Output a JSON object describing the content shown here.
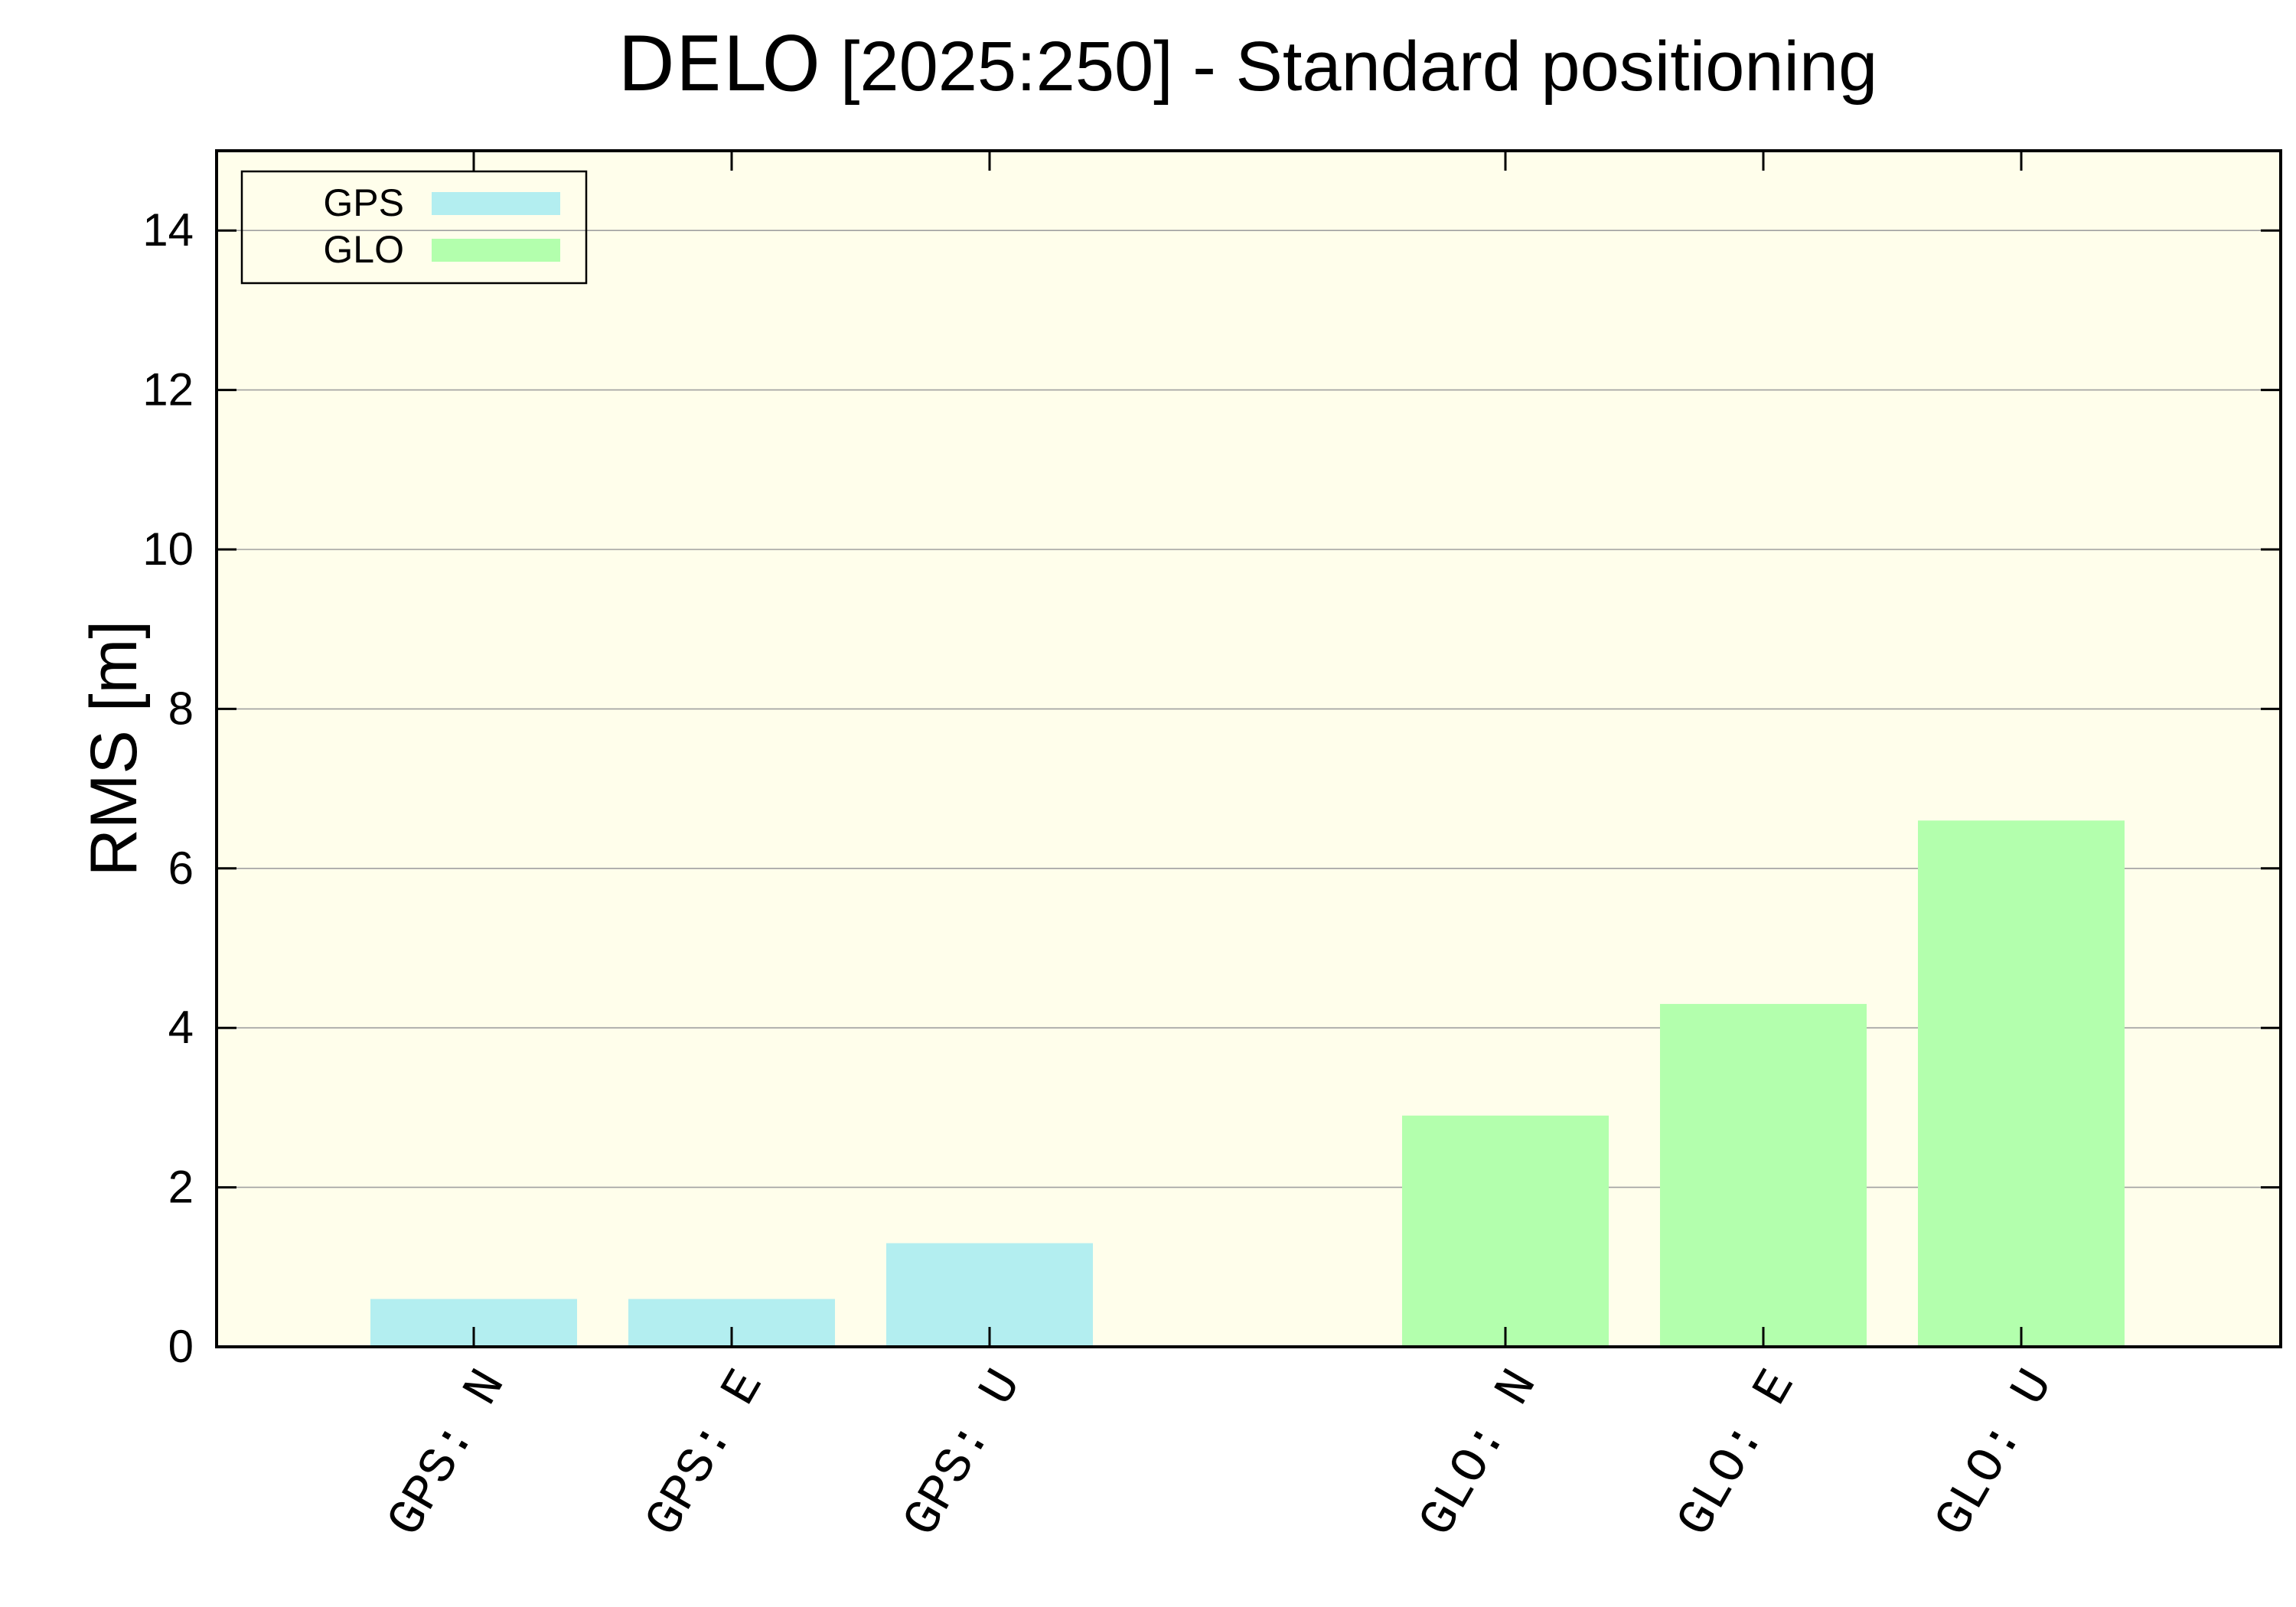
{
  "chart_data": {
    "type": "bar",
    "title_station": "DELO",
    "title_rest": " [2025:250] - Standard positioning",
    "xlabel": "",
    "ylabel": "RMS [m]",
    "ylim": [
      0,
      15
    ],
    "yticks": [
      0,
      2,
      4,
      6,
      8,
      10,
      12,
      14
    ],
    "grid": true,
    "legend_position": "top-left",
    "categories": [
      "GPS: N",
      "GPS: E",
      "GPS: U",
      "GLO: N",
      "GLO: E",
      "GLO: U"
    ],
    "series": [
      {
        "name": "GPS",
        "color": "#b3eef0",
        "values": [
          0.6,
          0.6,
          1.3,
          null,
          null,
          null
        ]
      },
      {
        "name": "GLO",
        "color": "#b3ffad",
        "values": [
          null,
          null,
          null,
          2.9,
          4.3,
          6.6
        ]
      }
    ],
    "colors": {
      "plot_background": "#fffeeb",
      "grid": "#a0a0a0",
      "axis": "#000000"
    }
  }
}
